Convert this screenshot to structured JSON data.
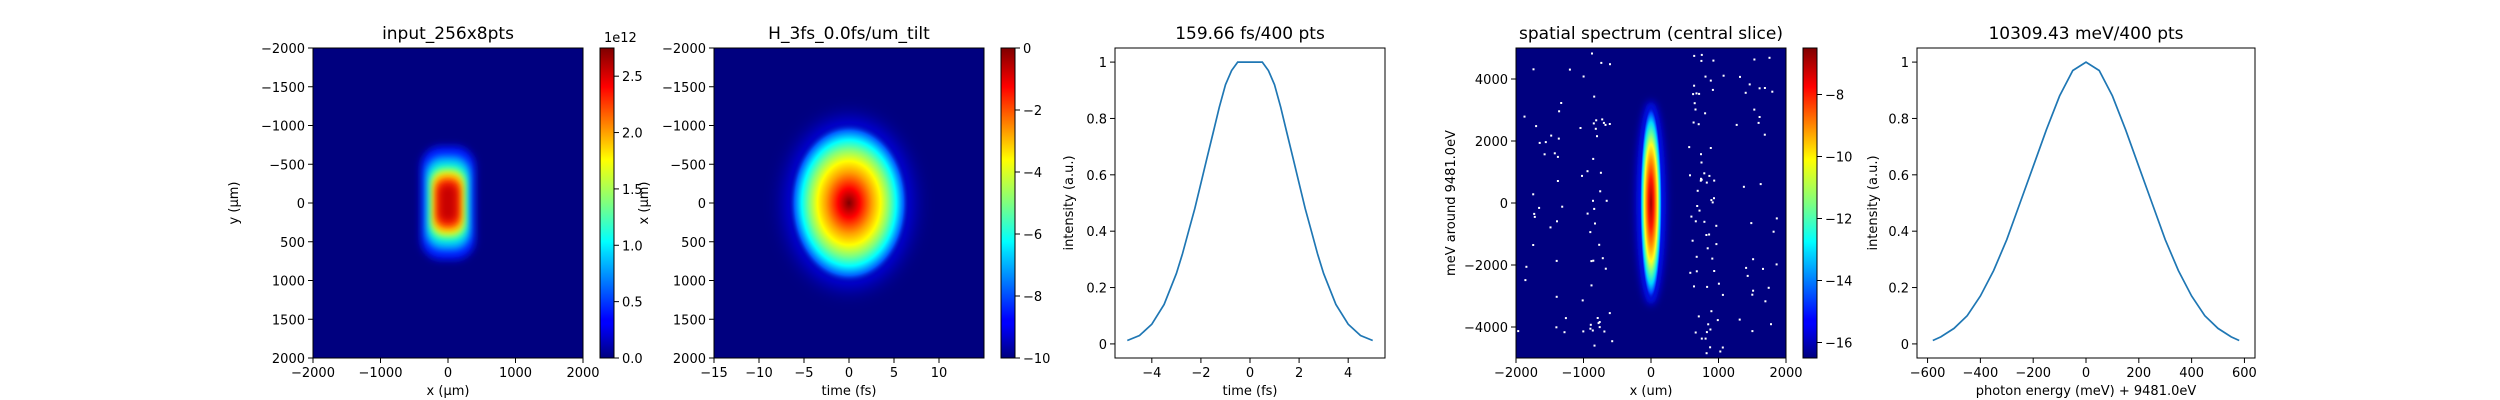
{
  "chart_data": [
    {
      "type": "heatmap",
      "title": "input_256x8pts",
      "xlabel": "x (μm)",
      "ylabel": "y (μm)",
      "xlim": [
        -2000,
        2000
      ],
      "ylim": [
        2000,
        -2000
      ],
      "xticks": [
        -2000,
        -1000,
        0,
        1000,
        2000
      ],
      "yticks": [
        -2000,
        -1500,
        -1000,
        -500,
        0,
        500,
        1000,
        1500,
        2000
      ],
      "colorbar": {
        "min": 0,
        "max": 2.75,
        "ticks": [
          "0.0",
          "0.5",
          "1.0",
          "1.5",
          "2.0",
          "2.5"
        ],
        "multiplier": "1e12",
        "colormap": "jet"
      },
      "blob": {
        "center": [
          0,
          0
        ],
        "half_width_x": 230,
        "half_width_y": 420,
        "shape": "rounded-rectangle"
      }
    },
    {
      "type": "heatmap",
      "title": "H_3fs_0.0fs/um_tilt",
      "xlabel": "time (fs)",
      "ylabel": "x (μm)",
      "xlim": [
        -15,
        15
      ],
      "ylim": [
        2000,
        -2000
      ],
      "xticks": [
        -15,
        -10,
        -5,
        0,
        5,
        10
      ],
      "yticks": [
        -2000,
        -1500,
        -1000,
        -500,
        0,
        500,
        1000,
        1500,
        2000
      ],
      "colorbar": {
        "min": -10,
        "max": 0,
        "ticks": [
          "−10",
          "−8",
          "−6",
          "−4",
          "−2",
          "0"
        ],
        "colormap": "jet",
        "scale": "log"
      },
      "blob": {
        "center": [
          0,
          0
        ],
        "sigma_t": 4.2,
        "sigma_x": 650,
        "shape": "ellipse"
      }
    },
    {
      "type": "line",
      "title": "159.66 fs/400 pts",
      "xlabel": "time (fs)",
      "ylabel": "intensity (a.u.)",
      "xlim": [
        -5.5,
        5.5
      ],
      "ylim": [
        -0.05,
        1.05
      ],
      "xticks": [
        -4,
        -2,
        0,
        2,
        4
      ],
      "yticks": [
        0.0,
        0.2,
        0.4,
        0.6,
        0.8,
        1.0
      ],
      "series": [
        {
          "x": [
            -5.0,
            -4.5,
            -4.0,
            -3.5,
            -3.0,
            -2.75,
            -2.5,
            -2.25,
            -2.0,
            -1.75,
            -1.5,
            -1.25,
            -1.0,
            -0.75,
            -0.5,
            -0.25,
            0.0,
            0.25,
            0.5,
            0.75,
            1.0,
            1.25,
            1.5,
            1.75,
            2.0,
            2.25,
            2.5,
            2.75,
            3.0,
            3.5,
            4.0,
            4.5,
            5.0
          ],
          "y": [
            0.012,
            0.03,
            0.07,
            0.14,
            0.25,
            0.32,
            0.4,
            0.48,
            0.57,
            0.66,
            0.75,
            0.84,
            0.92,
            0.97,
            1.0,
            1.0,
            1.0,
            1.0,
            1.0,
            0.97,
            0.92,
            0.84,
            0.75,
            0.66,
            0.57,
            0.48,
            0.4,
            0.32,
            0.25,
            0.14,
            0.07,
            0.03,
            0.012
          ],
          "color": "#1f77b4"
        }
      ]
    },
    {
      "type": "heatmap",
      "title": "spatial spectrum (central slice)",
      "xlabel": "x (um)",
      "ylabel": "meV around 9481.0eV",
      "xlim": [
        -2000,
        2000
      ],
      "ylim": [
        -5000,
        5000
      ],
      "xticks": [
        -2000,
        -1000,
        0,
        1000,
        2000
      ],
      "yticks": [
        -4000,
        -2000,
        0,
        2000,
        4000
      ],
      "colorbar": {
        "min": -16.5,
        "max": -6.5,
        "ticks": [
          "−16",
          "−14",
          "−12",
          "−10",
          "−8"
        ],
        "colormap": "jet",
        "scale": "log"
      },
      "blob": {
        "center": [
          0,
          0
        ],
        "sigma_x": 130,
        "sigma_e": 1900,
        "shape": "ellipse"
      },
      "noise_columns_x": [
        -1820,
        -1550,
        -1350,
        -900,
        -750,
        650,
        760,
        900,
        1350,
        1550,
        1700
      ]
    },
    {
      "type": "line",
      "title": "10309.43 meV/400 pts",
      "xlabel": "photon energy (meV) + 9481.0eV",
      "ylabel": "intensity (a.u.)",
      "xlim": [
        -640,
        640
      ],
      "ylim": [
        -0.05,
        1.05
      ],
      "xticks": [
        -600,
        -400,
        -200,
        0,
        200,
        400,
        600
      ],
      "yticks": [
        0.0,
        0.2,
        0.4,
        0.6,
        0.8,
        1.0
      ],
      "series": [
        {
          "x": [
            -580,
            -550,
            -500,
            -450,
            -400,
            -350,
            -300,
            -250,
            -200,
            -150,
            -100,
            -50,
            0,
            50,
            100,
            150,
            200,
            250,
            300,
            350,
            400,
            450,
            500,
            550,
            580
          ],
          "y": [
            0.012,
            0.025,
            0.055,
            0.1,
            0.17,
            0.26,
            0.37,
            0.5,
            0.63,
            0.76,
            0.88,
            0.97,
            1.0,
            0.97,
            0.88,
            0.76,
            0.63,
            0.5,
            0.37,
            0.26,
            0.17,
            0.1,
            0.055,
            0.025,
            0.012
          ],
          "color": "#1f77b4"
        }
      ]
    }
  ]
}
